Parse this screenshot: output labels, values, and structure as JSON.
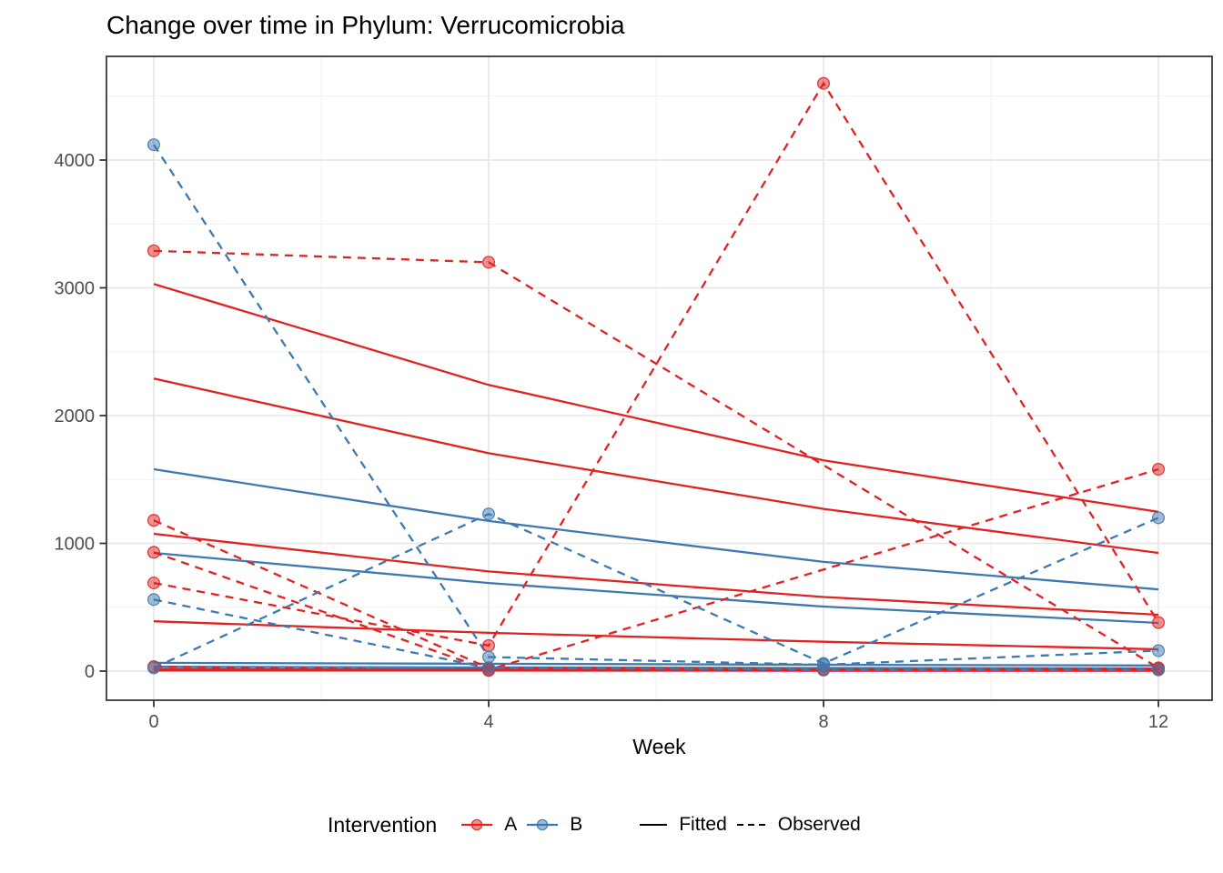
{
  "chart_data": {
    "type": "line",
    "title": "Change over time in Phylum: Verrucomicrobia",
    "xlabel": "Week",
    "ylabel": "",
    "x": [
      0,
      4,
      8,
      12
    ],
    "x_tick_labels": [
      "0",
      "4",
      "8",
      "12"
    ],
    "y_ticks": [
      0,
      1000,
      2000,
      3000,
      4000
    ],
    "y_tick_labels": [
      "0",
      "1000",
      "2000",
      "3000",
      "4000"
    ],
    "x_minor": [
      2,
      6,
      10
    ],
    "y_minor": [
      500,
      1500,
      2500,
      3500,
      4500
    ],
    "xlim": [
      -0.6,
      12.6
    ],
    "ylim": [
      -230,
      4810
    ],
    "grid": true,
    "legend": {
      "position": "bottom",
      "title": "Intervention",
      "groups": [
        {
          "label": "A",
          "color": "#E02222"
        },
        {
          "label": "B",
          "color": "#3D79B0"
        }
      ],
      "linetypes": [
        {
          "label": "Fitted",
          "style": "solid"
        },
        {
          "label": "Observed",
          "style": "dashed"
        }
      ]
    },
    "colors": {
      "A": "#E02222",
      "B": "#3D79B0"
    },
    "series": [
      {
        "name": "A-obs-1",
        "group": "A",
        "type": "observed",
        "values": [
          3290,
          3200,
          null,
          25
        ]
      },
      {
        "name": "A-obs-2",
        "group": "A",
        "type": "observed",
        "values": [
          690,
          200,
          4600,
          380
        ]
      },
      {
        "name": "A-obs-3",
        "group": "A",
        "type": "observed",
        "values": [
          1180,
          25,
          15,
          20
        ]
      },
      {
        "name": "A-obs-4",
        "group": "A",
        "type": "observed",
        "values": [
          930,
          10,
          null,
          1580
        ]
      },
      {
        "name": "A-obs-5",
        "group": "A",
        "type": "observed",
        "values": [
          35,
          5,
          8,
          10
        ]
      },
      {
        "name": "B-obs-1",
        "group": "B",
        "type": "observed",
        "values": [
          4120,
          110,
          50,
          160
        ]
      },
      {
        "name": "B-obs-2",
        "group": "B",
        "type": "observed",
        "values": [
          560,
          25,
          12,
          12
        ]
      },
      {
        "name": "B-obs-3",
        "group": "B",
        "type": "observed",
        "values": [
          25,
          1230,
          60,
          1200
        ]
      },
      {
        "name": "A-fit-1",
        "group": "A",
        "type": "fitted",
        "values": [
          3030,
          2240,
          1650,
          1246
        ]
      },
      {
        "name": "A-fit-2",
        "group": "A",
        "type": "fitted",
        "values": [
          2290,
          1705,
          1270,
          925
        ]
      },
      {
        "name": "A-fit-3",
        "group": "A",
        "type": "fitted",
        "values": [
          1075,
          780,
          580,
          441
        ]
      },
      {
        "name": "A-fit-4",
        "group": "A",
        "type": "fitted",
        "values": [
          390,
          300,
          230,
          171
        ]
      },
      {
        "name": "A-fit-5",
        "group": "A",
        "type": "fitted",
        "values": [
          16,
          13,
          11,
          9
        ]
      },
      {
        "name": "A-fit-6",
        "group": "A",
        "type": "fitted",
        "values": [
          5,
          4,
          3,
          3
        ]
      },
      {
        "name": "B-fit-1",
        "group": "B",
        "type": "fitted",
        "values": [
          1580,
          1175,
          855,
          640
        ]
      },
      {
        "name": "B-fit-2",
        "group": "B",
        "type": "fitted",
        "values": [
          925,
          690,
          505,
          377
        ]
      },
      {
        "name": "B-fit-3",
        "group": "B",
        "type": "fitted",
        "values": [
          65,
          58,
          50,
          44
        ]
      },
      {
        "name": "B-fit-4",
        "group": "B",
        "type": "fitted",
        "values": [
          34,
          29,
          25,
          21
        ]
      }
    ]
  }
}
